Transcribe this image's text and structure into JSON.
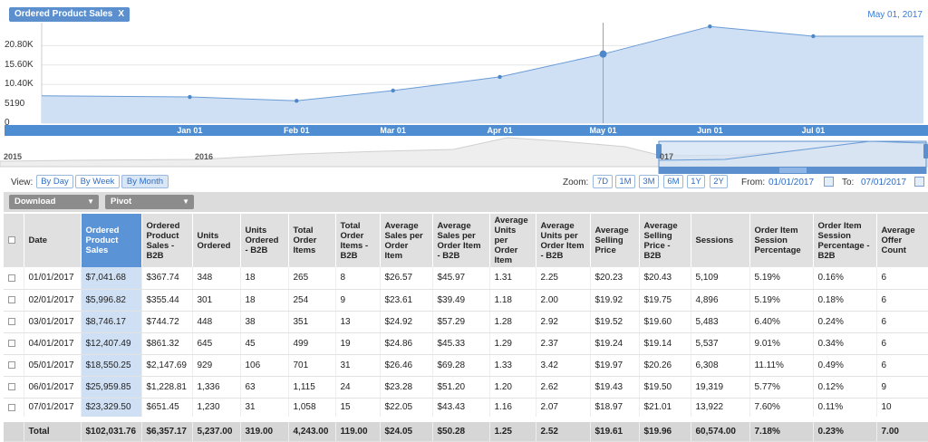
{
  "chart_title": "Ordered Product Sales",
  "close_symbol": "X",
  "current_date": "May 01, 2017",
  "y_ticks": [
    "20.80K",
    "15.60K",
    "10.40K",
    "5190",
    "0"
  ],
  "x_ticks": [
    "Jan 01",
    "Feb 01",
    "Mar 01",
    "Apr 01",
    "May 01",
    "Jun 01",
    "Jul 01"
  ],
  "navigator_labels": [
    "2015",
    "2016",
    "017"
  ],
  "chart_data": {
    "type": "area",
    "x": [
      "2017-01-01",
      "2017-02-01",
      "2017-03-01",
      "2017-04-01",
      "2017-05-01",
      "2017-06-01",
      "2017-07-01"
    ],
    "series": [
      {
        "values": [
          7041.68,
          5996.82,
          8746.17,
          12407.49,
          18550.25,
          25959.85,
          23329.5
        ]
      }
    ],
    "ylim": [
      0,
      26000
    ],
    "grid": true,
    "color": "#5b8fce",
    "highlight_x": "2017-05-01"
  },
  "controls": {
    "view_label": "View:",
    "view_buttons": [
      "By Day",
      "By Week",
      "By Month"
    ],
    "active_view": "By Month",
    "zoom_label": "Zoom:",
    "zoom_buttons": [
      "7D",
      "1M",
      "3M",
      "6M",
      "1Y",
      "2Y"
    ],
    "from_label": "From:",
    "from_value": "01/01/2017",
    "to_label": "To:",
    "to_value": "07/01/2017",
    "download": "Download",
    "pivot": "Pivot"
  },
  "table": {
    "headers": [
      "Date",
      "Ordered Product Sales",
      "Ordered Product Sales - B2B",
      "Units Ordered",
      "Units Ordered - B2B",
      "Total Order Items",
      "Total Order Items - B2B",
      "Average Sales per Order Item",
      "Average Sales per Order Item - B2B",
      "Average Units per Order Item",
      "Average Units per Order Item - B2B",
      "Average Selling Price",
      "Average Selling Price - B2B",
      "Sessions",
      "Order Item Session Percentage",
      "Order Item Session Percentage - B2B",
      "Average Offer Count"
    ],
    "rows": [
      [
        "01/01/2017",
        "$7,041.68",
        "$367.74",
        "348",
        "18",
        "265",
        "8",
        "$26.57",
        "$45.97",
        "1.31",
        "2.25",
        "$20.23",
        "$20.43",
        "5,109",
        "5.19%",
        "0.16%",
        "6"
      ],
      [
        "02/01/2017",
        "$5,996.82",
        "$355.44",
        "301",
        "18",
        "254",
        "9",
        "$23.61",
        "$39.49",
        "1.18",
        "2.00",
        "$19.92",
        "$19.75",
        "4,896",
        "5.19%",
        "0.18%",
        "6"
      ],
      [
        "03/01/2017",
        "$8,746.17",
        "$744.72",
        "448",
        "38",
        "351",
        "13",
        "$24.92",
        "$57.29",
        "1.28",
        "2.92",
        "$19.52",
        "$19.60",
        "5,483",
        "6.40%",
        "0.24%",
        "6"
      ],
      [
        "04/01/2017",
        "$12,407.49",
        "$861.32",
        "645",
        "45",
        "499",
        "19",
        "$24.86",
        "$45.33",
        "1.29",
        "2.37",
        "$19.24",
        "$19.14",
        "5,537",
        "9.01%",
        "0.34%",
        "6"
      ],
      [
        "05/01/2017",
        "$18,550.25",
        "$2,147.69",
        "929",
        "106",
        "701",
        "31",
        "$26.46",
        "$69.28",
        "1.33",
        "3.42",
        "$19.97",
        "$20.26",
        "6,308",
        "11.11%",
        "0.49%",
        "6"
      ],
      [
        "06/01/2017",
        "$25,959.85",
        "$1,228.81",
        "1,336",
        "63",
        "1,115",
        "24",
        "$23.28",
        "$51.20",
        "1.20",
        "2.62",
        "$19.43",
        "$19.50",
        "19,319",
        "5.77%",
        "0.12%",
        "9"
      ],
      [
        "07/01/2017",
        "$23,329.50",
        "$651.45",
        "1,230",
        "31",
        "1,058",
        "15",
        "$22.05",
        "$43.43",
        "1.16",
        "2.07",
        "$18.97",
        "$21.01",
        "13,922",
        "7.60%",
        "0.11%",
        "10"
      ]
    ],
    "total": [
      "Total",
      "$102,031.76",
      "$6,357.17",
      "5,237.00",
      "319.00",
      "4,243.00",
      "119.00",
      "$24.05",
      "$50.28",
      "1.25",
      "2.52",
      "$19.61",
      "$19.96",
      "60,574.00",
      "7.18%",
      "0.23%",
      "7.00"
    ]
  }
}
